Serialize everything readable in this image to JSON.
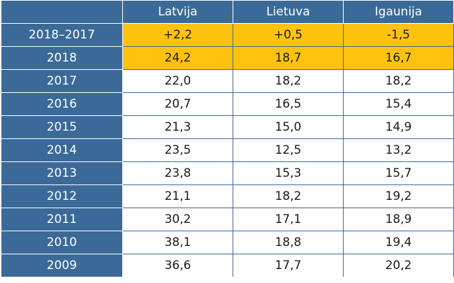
{
  "table": {
    "columns": [
      "Latvija",
      "Lietuva",
      "Igaunija"
    ],
    "highlight_color": "#ffc20e",
    "header_color": "#3b6a99",
    "rows": [
      {
        "label": "2018–2017",
        "values": [
          "+2,2",
          "+0,5",
          "-1,5"
        ],
        "highlight": true
      },
      {
        "label": "2018",
        "values": [
          "24,2",
          "18,7",
          "16,7"
        ],
        "highlight": true
      },
      {
        "label": "2017",
        "values": [
          "22,0",
          "18,2",
          "18,2"
        ],
        "highlight": false
      },
      {
        "label": "2016",
        "values": [
          "20,7",
          "16,5",
          "15,4"
        ],
        "highlight": false
      },
      {
        "label": "2015",
        "values": [
          "21,3",
          "15,0",
          "14,9"
        ],
        "highlight": false
      },
      {
        "label": "2014",
        "values": [
          "23,5",
          "12,5",
          "13,2"
        ],
        "highlight": false
      },
      {
        "label": "2013",
        "values": [
          "23,8",
          "15,3",
          "15,7"
        ],
        "highlight": false
      },
      {
        "label": "2012",
        "values": [
          "21,1",
          "18,2",
          "19,2"
        ],
        "highlight": false
      },
      {
        "label": "2011",
        "values": [
          "30,2",
          "17,1",
          "18,9"
        ],
        "highlight": false
      },
      {
        "label": "2010",
        "values": [
          "38,1",
          "18,8",
          "19,4"
        ],
        "highlight": false
      },
      {
        "label": "2009",
        "values": [
          "36,6",
          "17,7",
          "20,2"
        ],
        "highlight": false
      }
    ]
  }
}
